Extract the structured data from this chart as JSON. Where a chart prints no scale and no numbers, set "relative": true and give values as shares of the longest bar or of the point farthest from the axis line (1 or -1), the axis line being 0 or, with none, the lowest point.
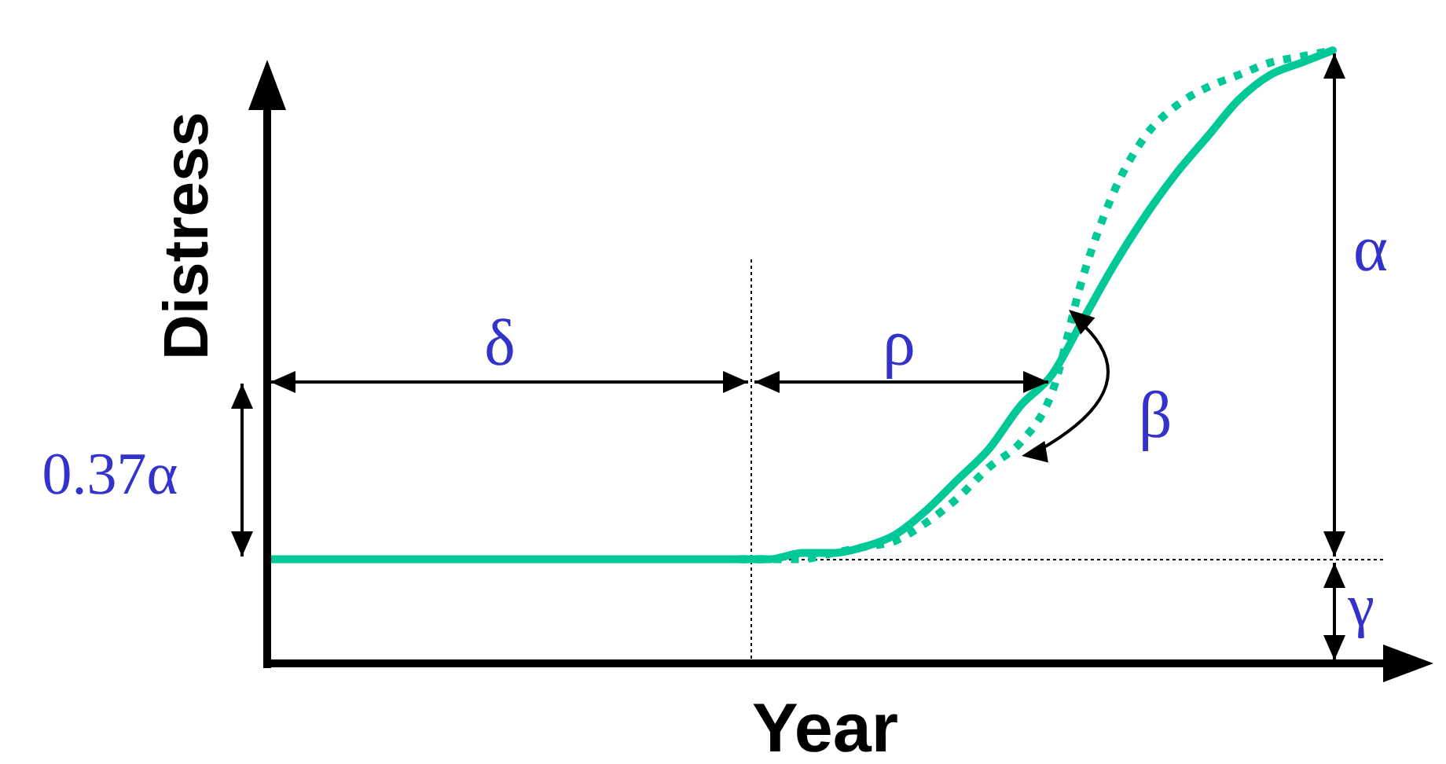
{
  "chart_data": {
    "type": "line",
    "relative": true,
    "xlabel": "Year",
    "ylabel": "Distress",
    "marker": "none",
    "categories": [
      null,
      null,
      null,
      null,
      null,
      null,
      null,
      null,
      null,
      null,
      null,
      null,
      null,
      null,
      null,
      null,
      null,
      null,
      null,
      null,
      null,
      null,
      null,
      null,
      null,
      null,
      null,
      null,
      null,
      null,
      null,
      null,
      null,
      null,
      null
    ],
    "series": [
      {
        "color": "#00c896",
        "line_style": "solid",
        "values": [
          0.17,
          0.17,
          0.17,
          0.17,
          0.17,
          0.17,
          0.17,
          0.17,
          0.17,
          0.17,
          0.17,
          0.17,
          0.17,
          0.17,
          0.17,
          0.17,
          0.17,
          0.18,
          0.18,
          0.19,
          0.21,
          0.25,
          0.3,
          0.35,
          0.42,
          0.47,
          0.56,
          0.65,
          0.73,
          0.8,
          0.86,
          0.92,
          0.96,
          0.98,
          1
        ]
      },
      {
        "color": "#00c896",
        "line_style": "dotted",
        "values": [
          null,
          null,
          null,
          null,
          null,
          null,
          null,
          null,
          null,
          null,
          null,
          null,
          null,
          null,
          null,
          0.17,
          0.17,
          0.17,
          0.18,
          0.19,
          0.2,
          0.23,
          0.27,
          0.32,
          0.36,
          0.44,
          0.63,
          0.77,
          0.86,
          0.91,
          0.94,
          0.96,
          0.98,
          0.99,
          1
        ]
      }
    ],
    "annotations": [
      "δ",
      "ρ",
      "β",
      "α",
      "γ",
      "0.37α"
    ]
  }
}
